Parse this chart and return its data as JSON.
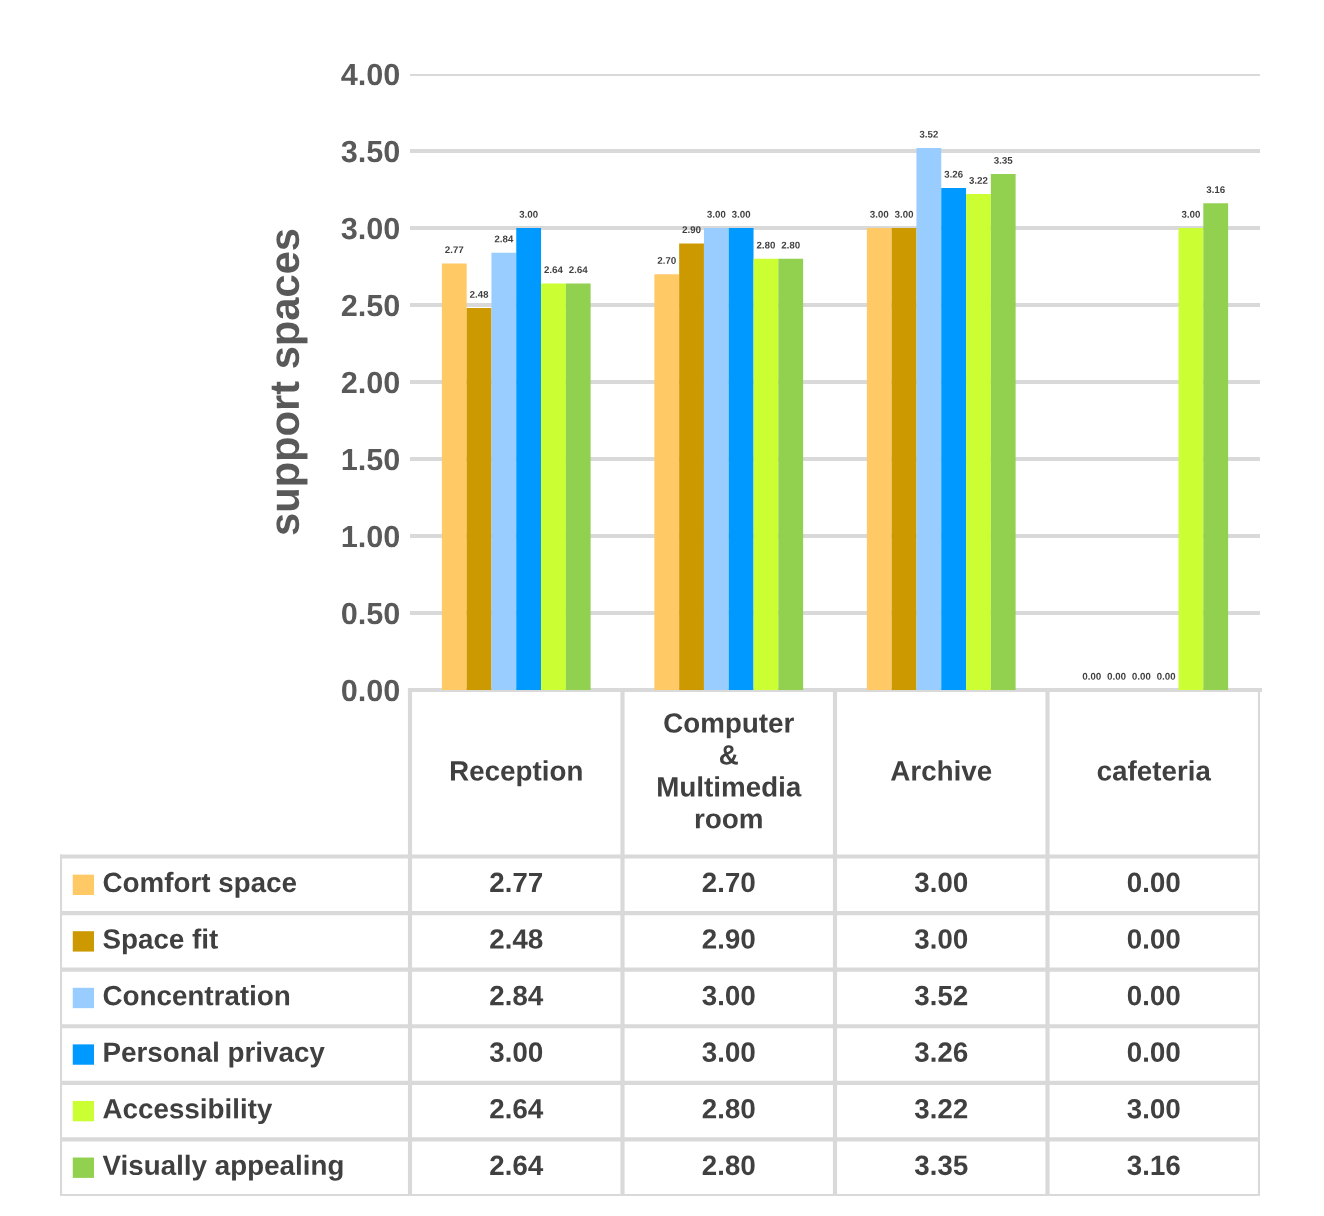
{
  "chart_data": {
    "type": "bar",
    "ylabel": "support spaces",
    "categories": [
      "Reception",
      "Computer\n&\nMultimedia\nroom",
      "Archive",
      "cafeteria"
    ],
    "series": [
      {
        "name": "Comfort space",
        "color": "#ffc966",
        "values": [
          2.77,
          2.7,
          3.0,
          0.0
        ],
        "value_labels": [
          "2.77",
          "2.70",
          "3.00",
          "0.00"
        ]
      },
      {
        "name": "Space fit",
        "color": "#cc9900",
        "values": [
          2.48,
          2.9,
          3.0,
          0.0
        ],
        "value_labels": [
          "2.48",
          "2.90",
          "3.00",
          "0.00"
        ]
      },
      {
        "name": "Concentration",
        "color": "#99ccff",
        "values": [
          2.84,
          3.0,
          3.52,
          0.0
        ],
        "value_labels": [
          "2.84",
          "3.00",
          "3.52",
          "0.00"
        ]
      },
      {
        "name": "Personal privacy",
        "color": "#0099ff",
        "values": [
          3.0,
          3.0,
          3.26,
          0.0
        ],
        "value_labels": [
          "3.00",
          "3.00",
          "3.26",
          "0.00"
        ]
      },
      {
        "name": "Accessibility",
        "color": "#ccff33",
        "values": [
          2.64,
          2.8,
          3.22,
          3.0
        ],
        "value_labels": [
          "2.64",
          "2.80",
          "3.22",
          "3.00"
        ]
      },
      {
        "name": "Visually appealing",
        "color": "#92d050",
        "values": [
          2.64,
          2.8,
          3.35,
          3.16
        ],
        "value_labels": [
          "2.64",
          "2.80",
          "3.35",
          "3.16"
        ]
      }
    ],
    "legend": "bottom",
    "ylim": [
      0,
      4
    ],
    "yticks": [
      {
        "value": 0,
        "label": "0.00"
      },
      {
        "value": 0.5,
        "label": "0.50"
      },
      {
        "value": 1,
        "label": "1.00"
      },
      {
        "value": 1.5,
        "label": "1.50"
      },
      {
        "value": 2,
        "label": "2.00"
      },
      {
        "value": 2.5,
        "label": "2.50"
      },
      {
        "value": 3,
        "label": "3.00"
      },
      {
        "value": 3.5,
        "label": "3.50"
      },
      {
        "value": 4,
        "label": "4.00"
      }
    ],
    "grid": "y"
  }
}
